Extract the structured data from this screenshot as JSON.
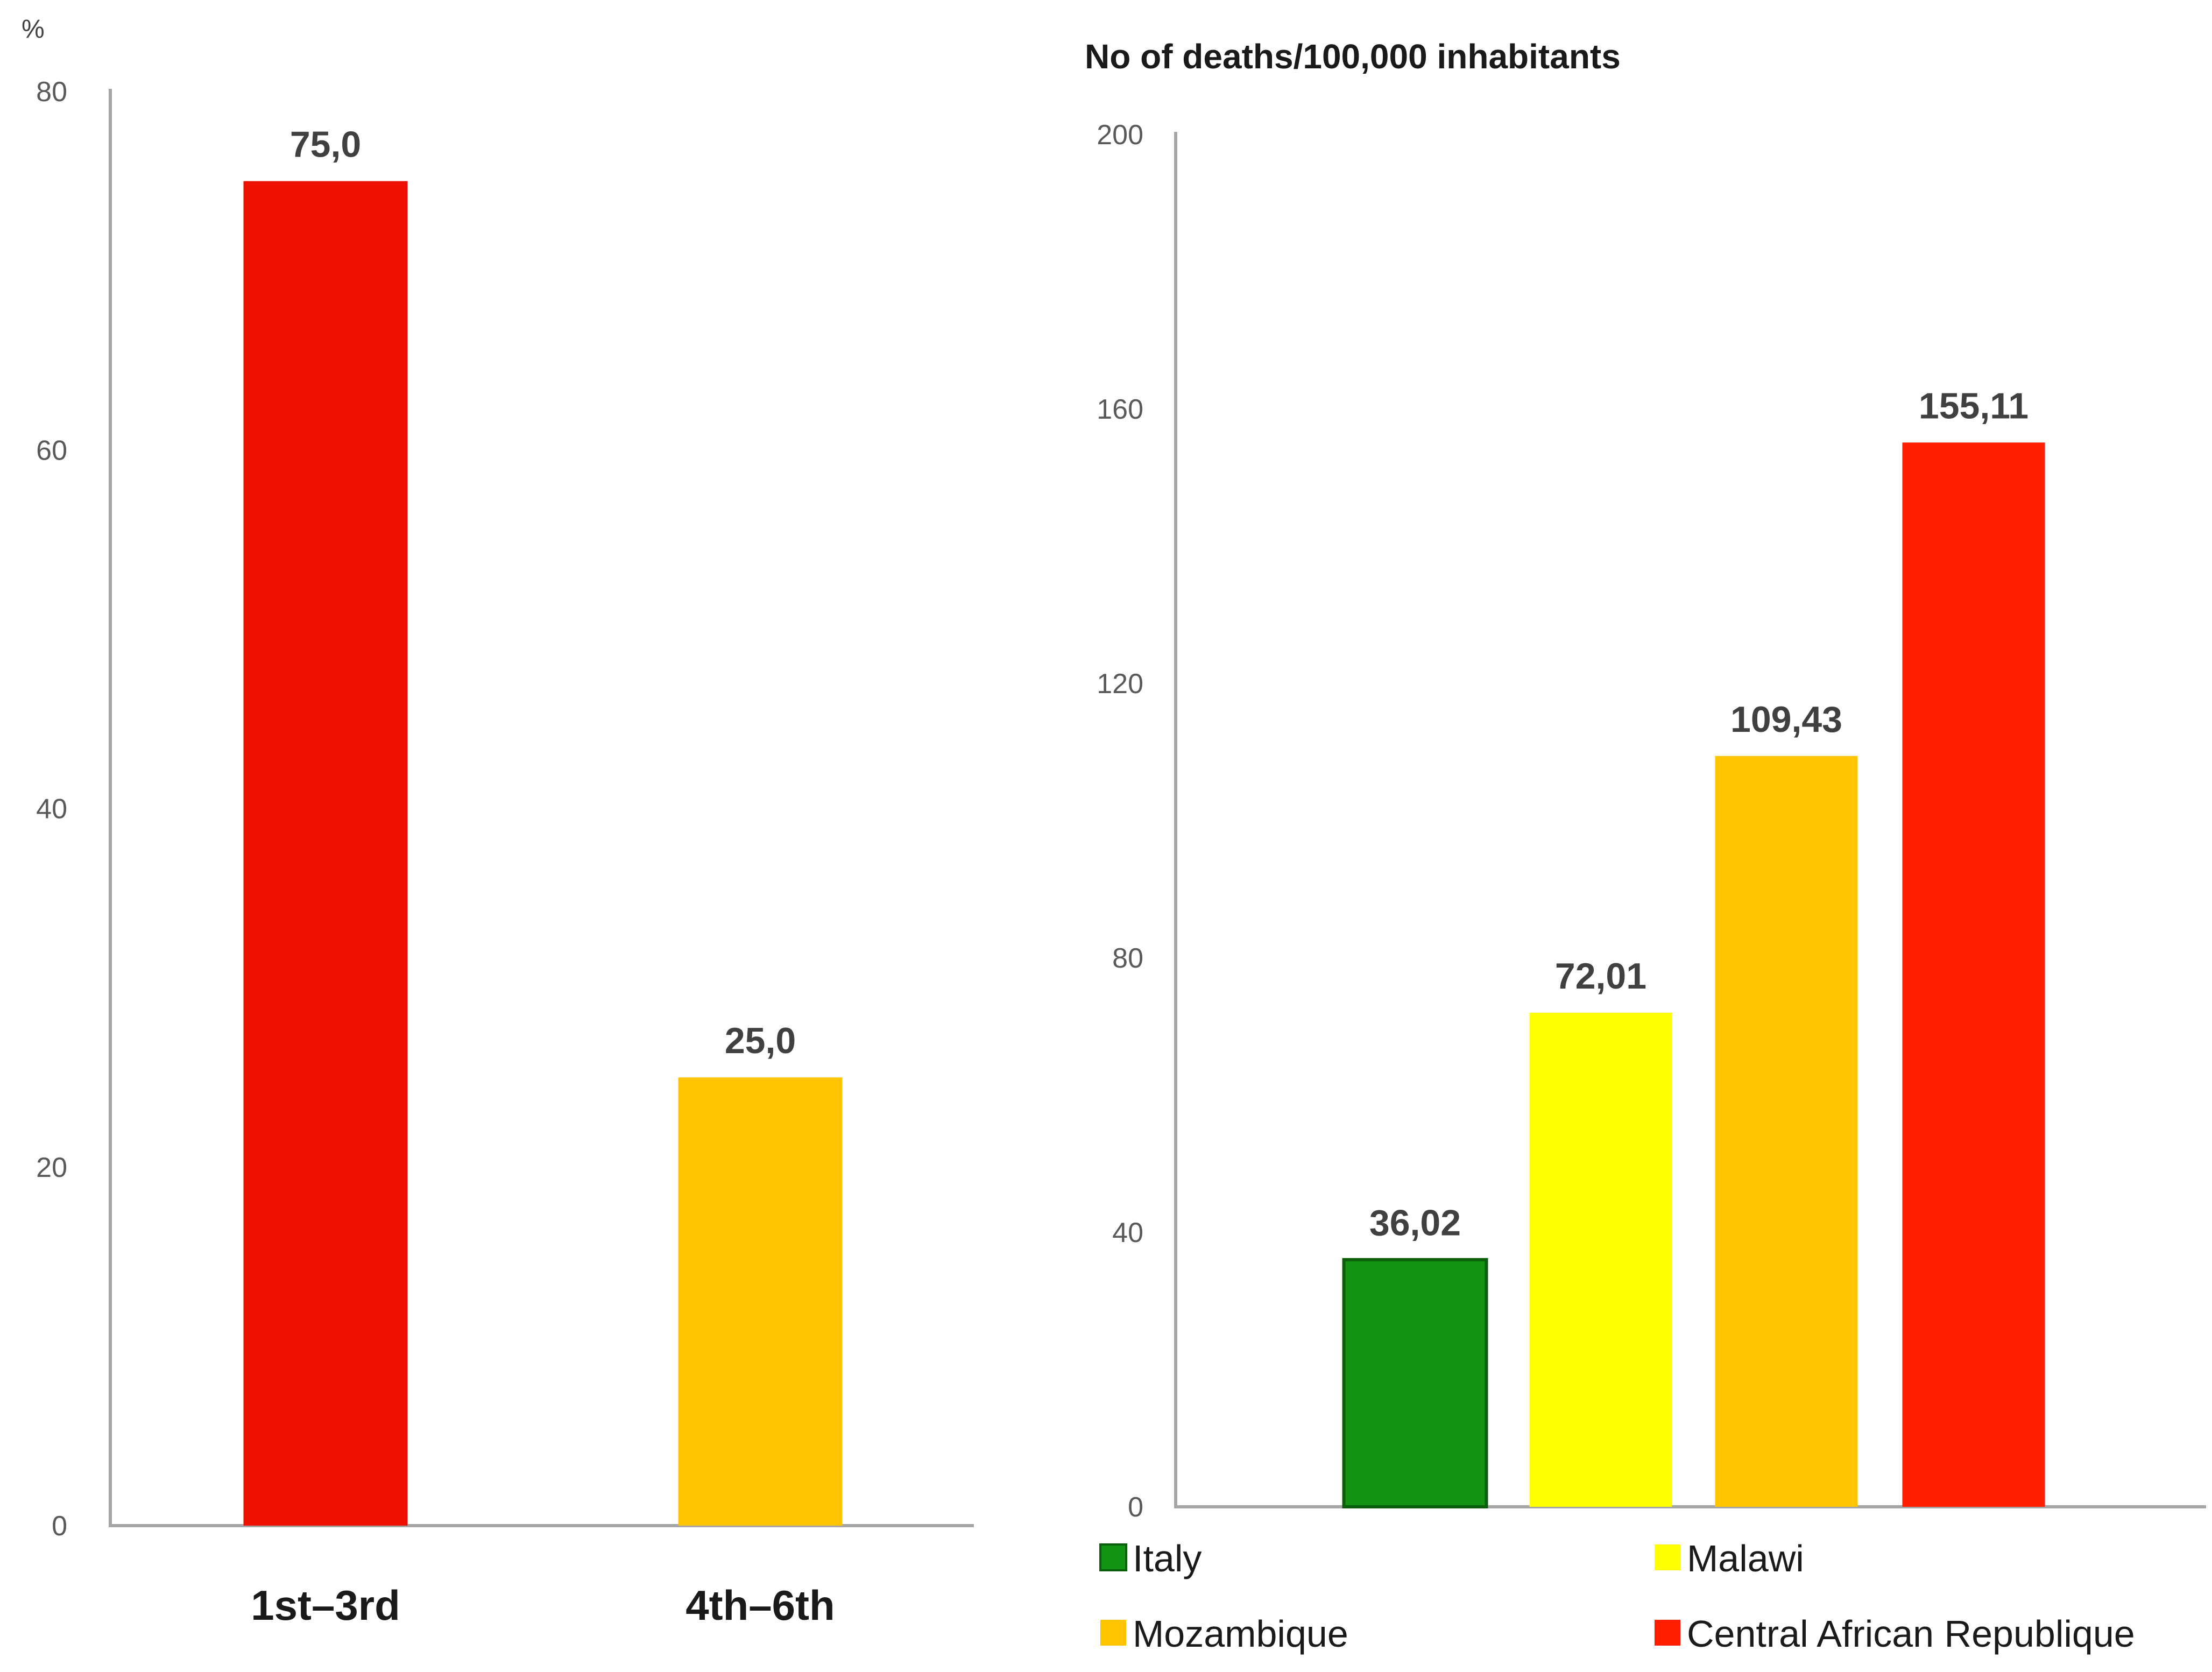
{
  "chart_data": [
    {
      "type": "bar",
      "ylabel": "%",
      "ylim": [
        0,
        80
      ],
      "yticks": [
        "0",
        "20",
        "40",
        "60",
        "80"
      ],
      "categories": [
        "1st–3rd",
        "4th–6th"
      ],
      "values": [
        75.0,
        25.0
      ],
      "value_labels": [
        "75,0",
        "25,0"
      ],
      "colors": [
        "#ee1100",
        "#ffc400"
      ]
    },
    {
      "type": "bar",
      "title": "No of deaths/100,000 inhabitants",
      "ylim": [
        0,
        200
      ],
      "yticks": [
        "0",
        "40",
        "80",
        "120",
        "160",
        "200"
      ],
      "categories": [
        "Italy",
        "Malawi",
        "Mozambique",
        "Central African Republique"
      ],
      "values": [
        36.02,
        72.01,
        109.43,
        155.11
      ],
      "value_labels": [
        "36,02",
        "72,01",
        "109,43",
        "155,11"
      ],
      "colors": [
        "#149414",
        "#ffff00",
        "#ffc400",
        "#ff1f00"
      ],
      "legend": [
        "Italy",
        "Malawi",
        "Mozambique",
        "Central African Republique"
      ],
      "legend_position": "bottom"
    }
  ]
}
